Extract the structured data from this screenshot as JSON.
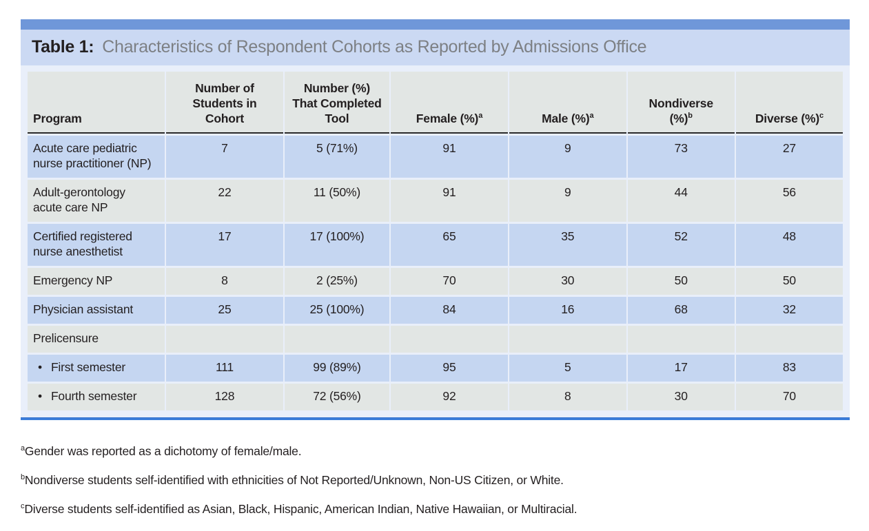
{
  "figure": {
    "label": "Table 1:",
    "title": "Characteristics of Respondent Cohorts as Reported by Admissions Office"
  },
  "table": {
    "columns": [
      {
        "lines": [],
        "last": "Program",
        "sup": ""
      },
      {
        "lines": [
          "Number of",
          "Students in"
        ],
        "last": "Cohort",
        "sup": ""
      },
      {
        "lines": [
          "Number (%)",
          "That Completed"
        ],
        "last": "Tool",
        "sup": ""
      },
      {
        "lines": [],
        "last": "Female (%)",
        "sup": "a"
      },
      {
        "lines": [],
        "last": "Male (%)",
        "sup": "a"
      },
      {
        "lines": [
          "Nondiverse"
        ],
        "last": "(%)",
        "sup": "b"
      },
      {
        "lines": [],
        "last": "Diverse (%)",
        "sup": "c"
      }
    ],
    "rows": [
      {
        "shade": "blue",
        "bullet": "",
        "program": "Acute care pediatric nurse practitioner (NP)",
        "values": [
          "7",
          "5 (71%)",
          "91",
          "9",
          "73",
          "27"
        ]
      },
      {
        "shade": "gray",
        "bullet": "",
        "program": "Adult-gerontology acute care NP",
        "values": [
          "22",
          "11 (50%)",
          "91",
          "9",
          "44",
          "56"
        ]
      },
      {
        "shade": "blue",
        "bullet": "",
        "program": "Certified registered nurse anesthetist",
        "values": [
          "17",
          "17 (100%)",
          "65",
          "35",
          "52",
          "48"
        ]
      },
      {
        "shade": "gray",
        "bullet": "",
        "program": "Emergency NP",
        "values": [
          "8",
          "2 (25%)",
          "70",
          "30",
          "50",
          "50"
        ]
      },
      {
        "shade": "blue",
        "bullet": "",
        "program": "Physician assistant",
        "values": [
          "25",
          "25 (100%)",
          "84",
          "16",
          "68",
          "32"
        ]
      },
      {
        "shade": "gray",
        "bullet": "",
        "program": "Prelicensure",
        "values": [
          "",
          "",
          "",
          "",
          "",
          ""
        ]
      },
      {
        "shade": "blue",
        "bullet": "•",
        "program": "First semester",
        "values": [
          "111",
          "99 (89%)",
          "95",
          "5",
          "17",
          "83"
        ]
      },
      {
        "shade": "gray",
        "bullet": "•",
        "program": "Fourth semester",
        "values": [
          "128",
          "72 (56%)",
          "92",
          "8",
          "30",
          "70"
        ]
      }
    ]
  },
  "footnotes": [
    {
      "marker": "a",
      "text": "Gender was reported as a dichotomy of female/male."
    },
    {
      "marker": "b",
      "text": "Nondiverse students self-identified with ethnicities of Not Reported/Unknown, Non-US Citizen, or White."
    },
    {
      "marker": "c",
      "text": "Diverse students self-identified as Asian, Black, Hispanic, American Indian, Native Hawaiian, or Multiracial."
    }
  ],
  "colors": {
    "top_bar": "#6f97d9",
    "title_band": "#cbd9f3",
    "row_blue": "#c5d6f1",
    "row_gray": "#e2e6e4",
    "table_backdrop": "#e9effa",
    "bottom_rule": "#3b7dda",
    "text_black": "#231f20",
    "title_gray": "#7d8084"
  }
}
